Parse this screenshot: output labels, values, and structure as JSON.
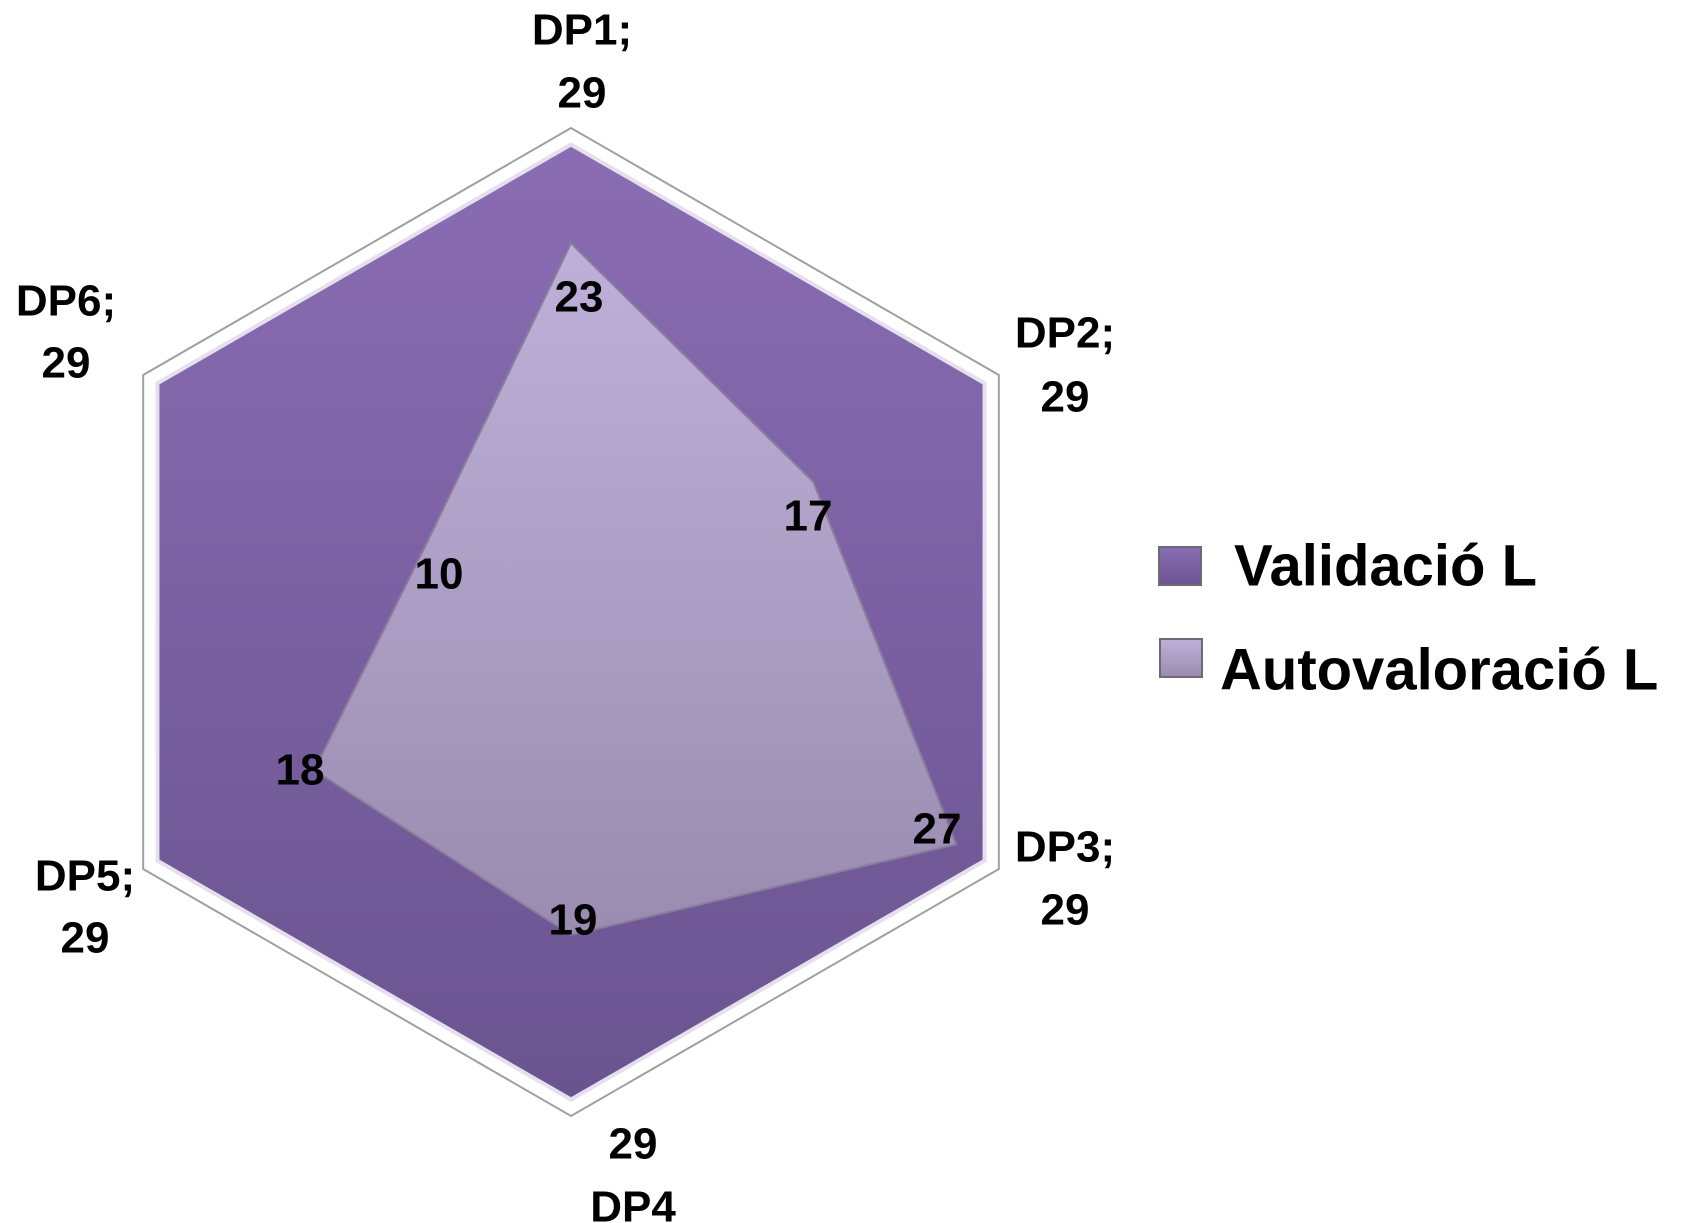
{
  "chart_data": {
    "type": "radar",
    "categories": [
      "DP1;",
      "DP2;",
      "DP3;",
      "DP4",
      "DP5;",
      "DP6;"
    ],
    "series": [
      {
        "name": "Validació L",
        "color": "#7b5ea7",
        "values": [
          29,
          29,
          29,
          29,
          29,
          29
        ]
      },
      {
        "name": "Autovaloració L",
        "color": "#b3a4cc",
        "values": [
          23,
          17,
          27,
          19,
          18,
          10
        ]
      }
    ],
    "ylim": [
      0,
      30
    ],
    "legend": "right"
  }
}
